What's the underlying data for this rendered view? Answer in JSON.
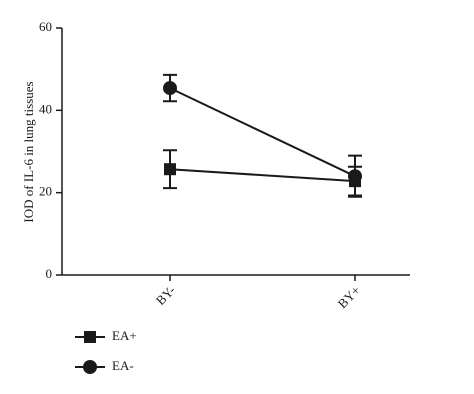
{
  "chart_data": {
    "type": "line",
    "y_label": "IOD of IL-6 in lung tissues",
    "categories": [
      "BY-",
      "BY+"
    ],
    "series": [
      {
        "name": "EA+",
        "color": "#1a1a1a",
        "marker": "square",
        "values": [
          25.7,
          22.8
        ],
        "errors": [
          4.6,
          3.5
        ]
      },
      {
        "name": "EA-",
        "color": "#1a1a1a",
        "marker": "circle",
        "values": [
          45.4,
          24.0
        ],
        "errors": [
          3.2,
          5.0
        ]
      }
    ],
    "ylim": [
      0,
      60
    ],
    "yticks": [
      0,
      20,
      40,
      60
    ],
    "grid": false
  }
}
